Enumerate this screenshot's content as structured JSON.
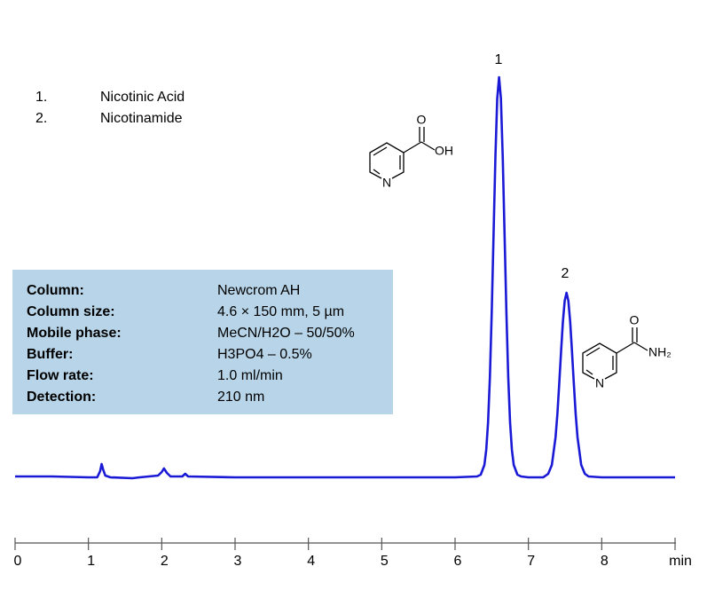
{
  "chart_data": {
    "type": "line",
    "legend_items": [
      {
        "number": "1.",
        "name": "Nicotinic Acid"
      },
      {
        "number": "2.",
        "name": "Nicotinamide"
      }
    ],
    "peak_labels": [
      "1",
      "2"
    ],
    "structures": [
      {
        "atoms": [
          "O",
          "OH",
          "N"
        ]
      },
      {
        "atoms": [
          "O",
          "NH₂",
          "N"
        ]
      }
    ],
    "conditions": [
      [
        "Column:",
        "Newcrom AH"
      ],
      [
        "Column size:",
        "4.6 × 150 mm, 5 µm"
      ],
      [
        "Mobile phase:",
        "MeCN/H2O – 50/50%"
      ],
      [
        "Buffer:",
        "H3PO4 – 0.5%"
      ],
      [
        "Flow rate:",
        "1.0 ml/min"
      ],
      [
        "Detection:",
        "210 nm"
      ]
    ],
    "xlim": [
      0,
      9
    ],
    "xticks": [
      0,
      1,
      2,
      3,
      4,
      5,
      6,
      7,
      8,
      {
        "value": 9,
        "label": "min"
      }
    ],
    "ylim": [
      -75,
      480
    ],
    "series": [
      {
        "color": "#1a1ad6",
        "x": [
          0,
          0.5,
          1.0,
          1.12,
          1.16,
          1.18,
          1.2,
          1.23,
          1.3,
          1.6,
          1.7,
          1.95,
          2.0,
          2.03,
          2.07,
          2.12,
          2.28,
          2.32,
          2.36,
          3,
          4,
          5,
          6,
          6.3,
          6.35,
          6.4,
          6.425,
          6.45,
          6.475,
          6.5,
          6.525,
          6.55,
          6.575,
          6.6,
          6.625,
          6.65,
          6.675,
          6.7,
          6.725,
          6.75,
          6.775,
          6.8,
          6.85,
          6.9,
          7.0,
          7.2,
          7.22,
          7.27,
          7.32,
          7.37,
          7.395,
          7.42,
          7.445,
          7.47,
          7.495,
          7.52,
          7.545,
          7.57,
          7.595,
          7.62,
          7.645,
          7.67,
          7.72,
          7.77,
          7.82,
          8,
          9
        ],
        "values": [
          0,
          0,
          -1,
          -1,
          6,
          14,
          8,
          1,
          -1,
          -2,
          -1,
          1,
          5,
          9,
          4,
          0,
          0,
          3,
          0,
          -1,
          -1,
          -1,
          -1,
          0,
          2,
          13,
          30,
          61,
          112,
          185,
          273,
          360,
          426,
          450,
          426,
          360,
          273,
          185,
          112,
          61,
          30,
          13,
          2,
          0,
          -1,
          -1,
          0,
          3,
          13,
          44,
          70,
          104,
          140,
          174,
          198,
          207,
          198,
          174,
          140,
          104,
          70,
          44,
          13,
          3,
          0,
          -1,
          -1
        ]
      }
    ]
  }
}
